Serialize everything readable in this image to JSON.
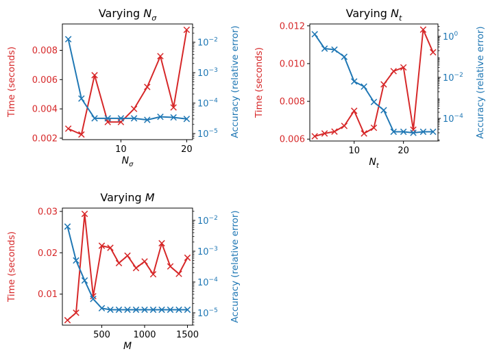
{
  "colors": {
    "time": "#d62728",
    "accuracy": "#1f77b4"
  },
  "chart_data": [
    {
      "type": "line",
      "title": "Varying ",
      "title_var": "N",
      "title_sub": "σ",
      "xlabel_var": "N",
      "xlabel_sub": "σ",
      "ylabel_left": "Time (seconds)",
      "ylabel_right": "Accuracy (relative error)",
      "xlim": [
        1.1,
        20.9
      ],
      "ylim_left": [
        0.0019,
        0.0098
      ],
      "ylim_right_log10": [
        -5.2,
        -1.4
      ],
      "x_ticks": [
        10,
        20
      ],
      "x_tick_labels": [
        "10",
        "20"
      ],
      "y_left_ticks": [
        0.002,
        0.004,
        0.006,
        0.008
      ],
      "y_left_tick_labels": [
        "0.002",
        "0.004",
        "0.006",
        "0.008"
      ],
      "y_right_ticks_log10": [
        -5,
        -4,
        -3,
        -2
      ],
      "y_right_tick_labels": [
        "10^-5",
        "10^-4",
        "10^-3",
        "10^-2"
      ],
      "x": [
        2,
        4,
        6,
        8,
        10,
        12,
        14,
        16,
        18,
        20
      ],
      "series": [
        {
          "axis": "left",
          "values": [
            0.00265,
            0.00225,
            0.0063,
            0.0031,
            0.0031,
            0.004,
            0.0055,
            0.0076,
            0.0041,
            0.0094
          ]
        },
        {
          "axis": "right",
          "values_log10": [
            -1.9,
            -3.85,
            -4.5,
            -4.5,
            -4.5,
            -4.5,
            -4.55,
            -4.45,
            -4.47,
            -4.52
          ]
        }
      ]
    },
    {
      "type": "line",
      "title": "Varying ",
      "title_var": "N",
      "title_sub": "t",
      "xlabel_var": "N",
      "xlabel_sub": "t",
      "ylabel_left": "Time (seconds)",
      "ylabel_right": "Accuracy (relative error)",
      "xlim": [
        1.0,
        27.0
      ],
      "ylim_left": [
        0.0059,
        0.0121
      ],
      "ylim_right_log10": [
        -5.1,
        0.6
      ],
      "x_ticks": [
        10,
        20
      ],
      "x_tick_labels": [
        "10",
        "20"
      ],
      "y_left_ticks": [
        0.006,
        0.008,
        0.01,
        0.012
      ],
      "y_left_tick_labels": [
        "0.006",
        "0.008",
        "0.010",
        "0.012"
      ],
      "y_right_ticks_log10": [
        -4,
        -2,
        0
      ],
      "y_right_tick_labels": [
        "10^-4",
        "10^-2",
        "10^0"
      ],
      "x": [
        2,
        4,
        6,
        8,
        10,
        12,
        14,
        16,
        18,
        20,
        22,
        24,
        26
      ],
      "series": [
        {
          "axis": "left",
          "values": [
            0.00615,
            0.0063,
            0.0064,
            0.0067,
            0.0075,
            0.0063,
            0.0066,
            0.0089,
            0.0096,
            0.0098,
            0.0065,
            0.0118,
            0.0106
          ]
        },
        {
          "axis": "right",
          "values_log10": [
            0.1,
            -0.6,
            -0.65,
            -1.0,
            -2.2,
            -2.45,
            -3.2,
            -3.6,
            -4.65,
            -4.65,
            -4.7,
            -4.65,
            -4.65
          ]
        }
      ]
    },
    {
      "type": "line",
      "title": "Varying ",
      "title_var": "M",
      "title_sub": "",
      "xlabel_var": "M",
      "xlabel_sub": "",
      "ylabel_left": "Time (seconds)",
      "ylabel_right": "Accuracy (relative error)",
      "xlim": [
        40,
        1560
      ],
      "ylim_left": [
        0.0025,
        0.0308
      ],
      "ylim_right_log10": [
        -5.4,
        -1.6
      ],
      "x_ticks": [
        500,
        1000,
        1500
      ],
      "x_tick_labels": [
        "500",
        "1000",
        "1500"
      ],
      "y_left_ticks": [
        0.01,
        0.02,
        0.03
      ],
      "y_left_tick_labels": [
        "0.01",
        "0.02",
        "0.03"
      ],
      "y_right_ticks_log10": [
        -5,
        -4,
        -3,
        -2
      ],
      "y_right_tick_labels": [
        "10^-5",
        "10^-4",
        "10^-3",
        "10^-2"
      ],
      "x": [
        100,
        200,
        300,
        400,
        500,
        600,
        700,
        800,
        900,
        1000,
        1100,
        1200,
        1300,
        1400,
        1500
      ],
      "series": [
        {
          "axis": "left",
          "values": [
            0.0037,
            0.0055,
            0.0294,
            0.0095,
            0.0217,
            0.0212,
            0.0175,
            0.0193,
            0.0163,
            0.0179,
            0.0148,
            0.0223,
            0.0167,
            0.0149,
            0.0188
          ]
        },
        {
          "axis": "right",
          "values_log10": [
            -2.2,
            -3.3,
            -3.95,
            -4.55,
            -4.85,
            -4.9,
            -4.9,
            -4.9,
            -4.9,
            -4.9,
            -4.9,
            -4.9,
            -4.9,
            -4.9,
            -4.9
          ]
        }
      ]
    }
  ]
}
